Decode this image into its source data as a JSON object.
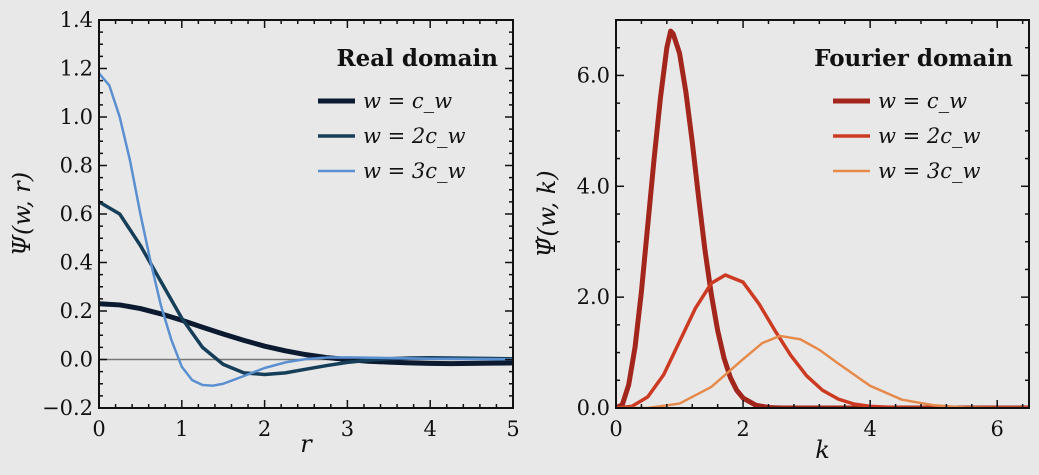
{
  "chart_data": [
    {
      "type": "line",
      "legend_title": "Real domain",
      "xlabel": "r",
      "ylabel": "Ψ(w, r)",
      "xlim": [
        0,
        5
      ],
      "ylim": [
        -0.2,
        1.4
      ],
      "xticks": [
        0,
        1,
        2,
        3,
        4,
        5
      ],
      "xtick_labels": [
        "0",
        "1",
        "2",
        "3",
        "4",
        "5"
      ],
      "yticks": [
        -0.2,
        0.0,
        0.2,
        0.4,
        0.6,
        0.8,
        1.0,
        1.2,
        1.4
      ],
      "ytick_labels": [
        "−0.2",
        "0.0",
        "0.2",
        "0.4",
        "0.6",
        "0.8",
        "1.0",
        "1.2",
        "1.4"
      ],
      "legend_position": "top-right",
      "zero_line": true,
      "series": [
        {
          "name": "w = c_w",
          "color": "#0b1a30",
          "x": [
            0,
            0.25,
            0.5,
            0.75,
            1.0,
            1.25,
            1.5,
            1.75,
            2.0,
            2.25,
            2.5,
            2.75,
            3.0,
            3.25,
            3.5,
            3.75,
            4.0,
            4.25,
            4.5,
            4.75,
            5.0
          ],
          "y": [
            0.23,
            0.225,
            0.21,
            0.188,
            0.162,
            0.133,
            0.105,
            0.079,
            0.055,
            0.036,
            0.02,
            0.008,
            0.0,
            -0.007,
            -0.011,
            -0.014,
            -0.016,
            -0.017,
            -0.016,
            -0.015,
            -0.014
          ]
        },
        {
          "name": "w = 2c_w",
          "color": "#163e58",
          "x": [
            0,
            0.25,
            0.5,
            0.75,
            1.0,
            1.25,
            1.5,
            1.75,
            2.0,
            2.25,
            2.5,
            2.75,
            3.0,
            3.25,
            3.5,
            3.75,
            4.0,
            4.25,
            4.5,
            4.75,
            5.0
          ],
          "y": [
            0.65,
            0.6,
            0.47,
            0.32,
            0.17,
            0.05,
            -0.02,
            -0.055,
            -0.062,
            -0.055,
            -0.04,
            -0.025,
            -0.012,
            -0.003,
            0.003,
            0.006,
            0.007,
            0.006,
            0.005,
            0.004,
            0.003
          ]
        },
        {
          "name": "w = 3c_w",
          "color": "#5a8fd0",
          "x": [
            0,
            0.125,
            0.25,
            0.375,
            0.5,
            0.625,
            0.75,
            0.875,
            1.0,
            1.125,
            1.25,
            1.375,
            1.5,
            1.75,
            2.0,
            2.25,
            2.5,
            2.75,
            3.0,
            3.5,
            4.0,
            4.5,
            5.0
          ],
          "y": [
            1.18,
            1.13,
            1.0,
            0.82,
            0.6,
            0.4,
            0.22,
            0.08,
            -0.03,
            -0.085,
            -0.105,
            -0.108,
            -0.1,
            -0.068,
            -0.035,
            -0.012,
            0.002,
            0.008,
            0.009,
            0.006,
            0.003,
            0.002,
            0.001
          ]
        }
      ]
    },
    {
      "type": "line",
      "legend_title": "Fourier domain",
      "xlabel": "k",
      "ylabel": "Ψ̂(w, k)",
      "xlim": [
        0,
        6.5
      ],
      "ylim": [
        0,
        7.0
      ],
      "xticks": [
        0,
        2,
        4,
        6
      ],
      "xtick_labels": [
        "0",
        "2",
        "4",
        "6"
      ],
      "yticks": [
        0,
        2,
        4,
        6
      ],
      "ytick_labels": [
        "0.0",
        "2.0",
        "4.0",
        "6.0"
      ],
      "legend_position": "top-right",
      "series": [
        {
          "name": "w = c_w",
          "color": "#a3261c",
          "x": [
            0,
            0.1,
            0.2,
            0.3,
            0.4,
            0.5,
            0.6,
            0.7,
            0.8,
            0.86,
            0.9,
            1.0,
            1.1,
            1.2,
            1.3,
            1.4,
            1.5,
            1.6,
            1.7,
            1.8,
            1.9,
            2.0,
            2.2,
            2.4,
            2.6,
            3.0,
            6.5
          ],
          "y": [
            0,
            0.06,
            0.42,
            1.1,
            2.1,
            3.3,
            4.5,
            5.6,
            6.5,
            6.8,
            6.75,
            6.4,
            5.7,
            4.8,
            3.8,
            2.85,
            2.05,
            1.4,
            0.9,
            0.55,
            0.32,
            0.18,
            0.05,
            0.01,
            0.0,
            0.0,
            0.0
          ]
        },
        {
          "name": "w = 2c_w",
          "color": "#cc3a22",
          "x": [
            0,
            0.25,
            0.5,
            0.75,
            1.0,
            1.25,
            1.5,
            1.72,
            2.0,
            2.25,
            2.5,
            2.75,
            3.0,
            3.25,
            3.5,
            3.75,
            4.0,
            4.5,
            5.0,
            6.5
          ],
          "y": [
            0,
            0.03,
            0.2,
            0.6,
            1.2,
            1.8,
            2.25,
            2.4,
            2.27,
            1.88,
            1.4,
            0.95,
            0.58,
            0.32,
            0.16,
            0.07,
            0.03,
            0.005,
            0.0,
            0.0
          ]
        },
        {
          "name": "w = 3c_w",
          "color": "#e68a4c",
          "x": [
            0,
            0.5,
            1.0,
            1.5,
            2.0,
            2.3,
            2.58,
            2.9,
            3.2,
            3.5,
            4.0,
            4.5,
            5.0,
            5.5,
            6.0,
            6.5
          ],
          "y": [
            0,
            0.0,
            0.08,
            0.38,
            0.88,
            1.17,
            1.3,
            1.24,
            1.05,
            0.8,
            0.4,
            0.15,
            0.05,
            0.01,
            0.0,
            0.0
          ]
        }
      ]
    }
  ]
}
